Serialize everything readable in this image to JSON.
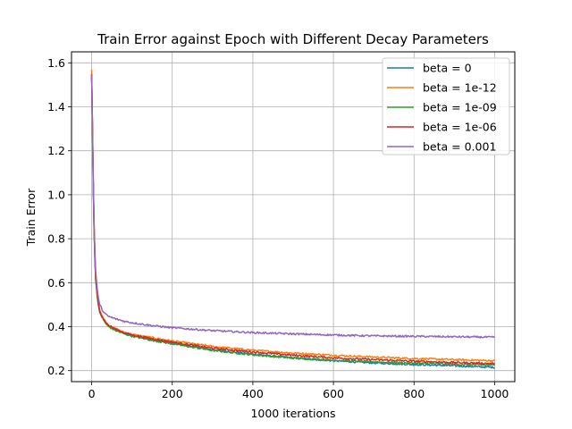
{
  "chart_data": {
    "type": "line",
    "title": "Train Error against Epoch with Different Decay Parameters",
    "xlabel": "1000 iterations",
    "ylabel": "Train Error",
    "xlim": [
      -50,
      1050
    ],
    "ylim": [
      0.15,
      1.65
    ],
    "xticks": [
      0,
      200,
      400,
      600,
      800,
      1000
    ],
    "yticks": [
      0.2,
      0.4,
      0.6,
      0.8,
      1.0,
      1.2,
      1.4,
      1.6
    ],
    "ytick_labels": [
      "0.2",
      "0.4",
      "0.6",
      "0.8",
      "1.0",
      "1.2",
      "1.4",
      "1.6"
    ],
    "grid": true,
    "legend_position": "top-right",
    "x": [
      0,
      2,
      4,
      6,
      8,
      10,
      15,
      20,
      30,
      40,
      60,
      80,
      100,
      150,
      200,
      300,
      400,
      500,
      600,
      700,
      800,
      900,
      1000
    ],
    "series": [
      {
        "name": "beta = 0",
        "color": "#1f77b4",
        "values": [
          1.55,
          1.3,
          1.05,
          0.85,
          0.72,
          0.62,
          0.52,
          0.47,
          0.43,
          0.405,
          0.385,
          0.37,
          0.36,
          0.34,
          0.325,
          0.295,
          0.275,
          0.258,
          0.245,
          0.235,
          0.228,
          0.222,
          0.215
        ]
      },
      {
        "name": "beta = 1e-12",
        "color": "#ff7f0e",
        "values": [
          1.57,
          1.32,
          1.07,
          0.86,
          0.73,
          0.63,
          0.53,
          0.475,
          0.435,
          0.41,
          0.39,
          0.375,
          0.365,
          0.35,
          0.335,
          0.31,
          0.293,
          0.28,
          0.27,
          0.262,
          0.255,
          0.25,
          0.245
        ]
      },
      {
        "name": "beta = 1e-09",
        "color": "#2ca02c",
        "values": [
          1.54,
          1.29,
          1.04,
          0.84,
          0.71,
          0.61,
          0.515,
          0.465,
          0.428,
          0.402,
          0.382,
          0.368,
          0.357,
          0.338,
          0.322,
          0.292,
          0.272,
          0.257,
          0.247,
          0.24,
          0.234,
          0.229,
          0.225
        ]
      },
      {
        "name": "beta = 1e-06",
        "color": "#d62728",
        "values": [
          1.55,
          1.31,
          1.06,
          0.855,
          0.725,
          0.625,
          0.525,
          0.472,
          0.432,
          0.408,
          0.388,
          0.373,
          0.363,
          0.345,
          0.33,
          0.302,
          0.285,
          0.27,
          0.258,
          0.25,
          0.243,
          0.237,
          0.232
        ]
      },
      {
        "name": "beta = 0.001",
        "color": "#9467bd",
        "values": [
          1.55,
          1.32,
          1.08,
          0.88,
          0.75,
          0.65,
          0.55,
          0.5,
          0.465,
          0.448,
          0.435,
          0.425,
          0.418,
          0.405,
          0.395,
          0.382,
          0.373,
          0.367,
          0.362,
          0.358,
          0.356,
          0.354,
          0.352
        ]
      }
    ]
  }
}
